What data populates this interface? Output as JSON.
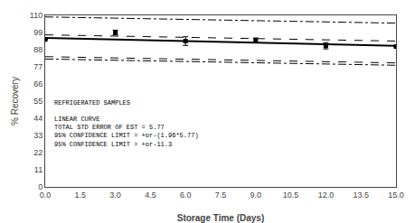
{
  "chart_data": {
    "type": "line",
    "xlabel": "Storage Time (Days)",
    "ylabel": "% Recovery",
    "xlim": [
      0.0,
      15.0
    ],
    "ylim": [
      0,
      110
    ],
    "xticks": [
      {
        "value": 0.0,
        "label": "0.0"
      },
      1.5,
      {
        "value": 3.0,
        "label": "3.0"
      },
      4.5,
      {
        "value": 6.0,
        "label": "6.0"
      },
      7.5,
      {
        "value": 9.0,
        "label": "9.0"
      },
      10.5,
      {
        "value": 12.0,
        "label": "12.0"
      },
      13.5,
      {
        "value": 15.0,
        "label": "15.0"
      }
    ],
    "yticks": [
      0,
      11,
      22,
      33,
      44,
      55,
      66,
      77,
      88,
      99,
      110
    ],
    "grid": false,
    "series": [
      {
        "type": "line",
        "x": [
          0,
          15
        ],
        "values": [
          109.0,
          105.0
        ],
        "color": "black",
        "line_style": "dashdot"
      },
      {
        "type": "line",
        "x": [
          0,
          15
        ],
        "values": [
          97.5,
          93.5
        ],
        "color": "black",
        "line_style": "dashed"
      },
      {
        "type": "line",
        "x": [
          0,
          15
        ],
        "values": [
          95.5,
          90.5
        ],
        "color": "black",
        "line_style": "solid"
      },
      {
        "type": "line",
        "x": [
          0,
          15
        ],
        "values": [
          83.5,
          79.5
        ],
        "color": "black",
        "line_style": "dashed"
      },
      {
        "type": "line",
        "x": [
          0,
          15
        ],
        "values": [
          82.0,
          78.0
        ],
        "color": "black",
        "line_style": "dashdot"
      },
      {
        "type": "scatter",
        "x": [
          0,
          3,
          6,
          9,
          12,
          15
        ],
        "values": [
          94.5,
          99.0,
          93.5,
          94.0,
          90.5,
          90.0
        ],
        "yerr": [
          0.0,
          1.5,
          2.8,
          1.5,
          2.0,
          0.0
        ],
        "color": "black",
        "marker": "square"
      }
    ],
    "annotation": "REFRIGERATED SAMPLES\n\nLINEAR CURVE\nTOTAL STD ERROR OF EST = 5.77\n95% CONFIDENCE LIMIT = +or-(1.96*5.77)\n95% CONFIDENCE LIMIT = +or-11.3"
  }
}
